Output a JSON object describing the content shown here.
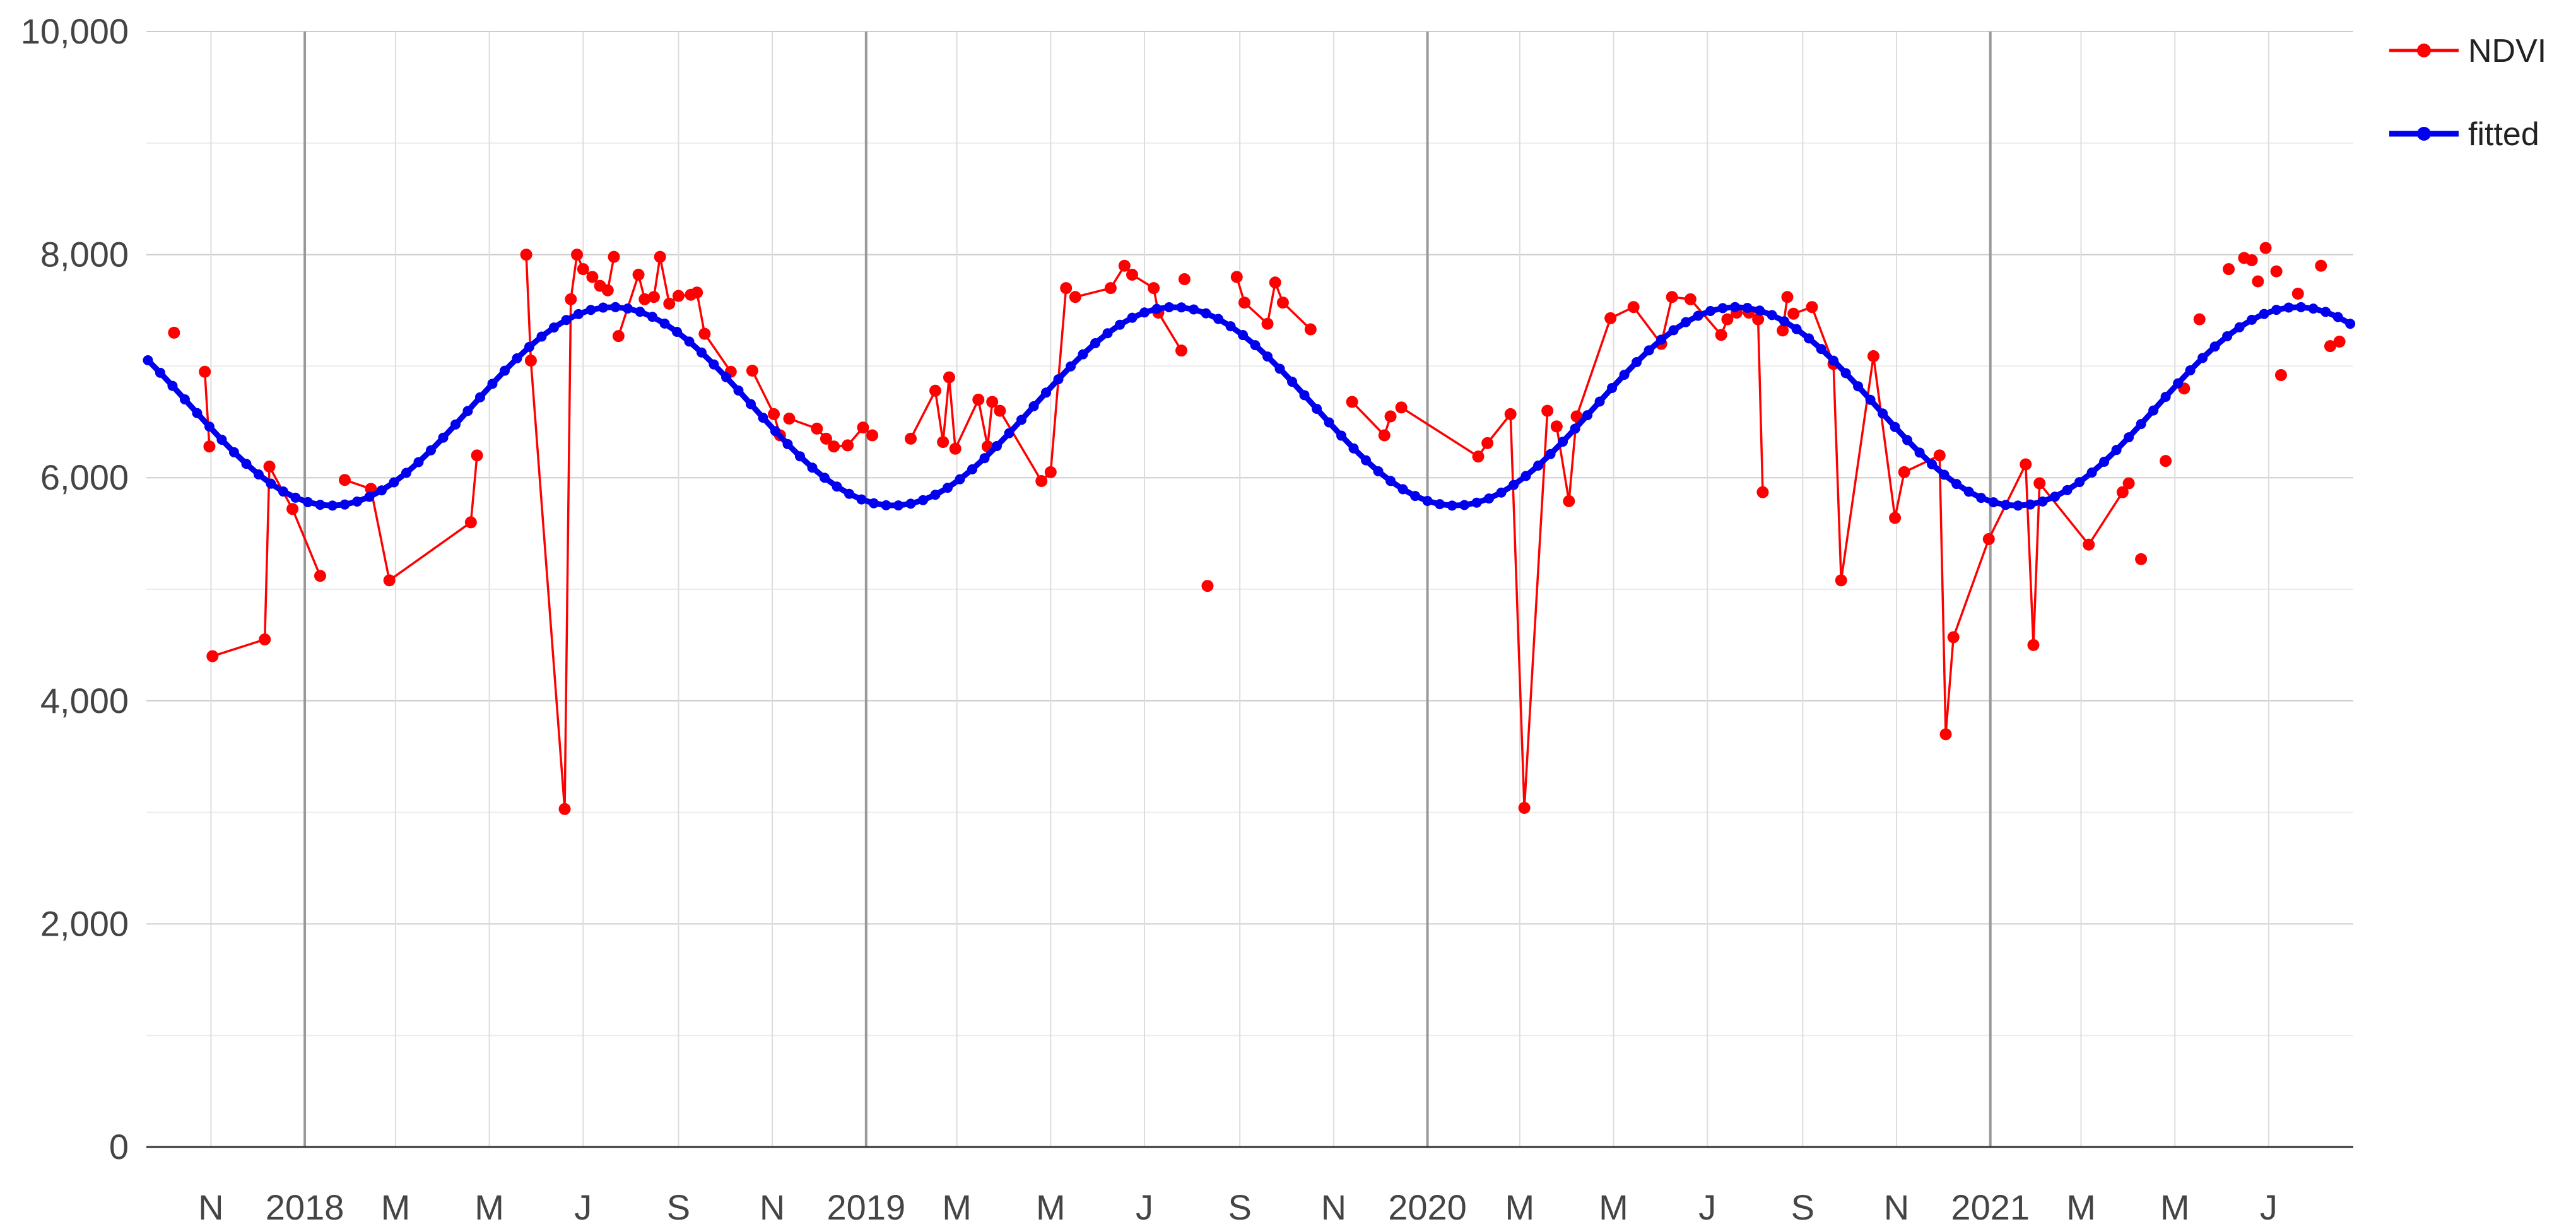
{
  "chart_data": {
    "type": "line",
    "title": "",
    "xlabel": "",
    "ylabel": "",
    "ylim": [
      0,
      10000
    ],
    "xlim": [
      "2017-09-20",
      "2021-08-25"
    ],
    "grid": true,
    "legend_position": "top-right",
    "y_ticks": [
      "0",
      "2,000",
      "4,000",
      "6,000",
      "8,000",
      "10,000"
    ],
    "y_tick_values": [
      0,
      2000,
      4000,
      6000,
      8000,
      10000
    ],
    "x_ticks": [
      {
        "label": "N",
        "date": "2017-11-01"
      },
      {
        "label": "2018",
        "date": "2018-01-01"
      },
      {
        "label": "M",
        "date": "2018-03-01"
      },
      {
        "label": "M",
        "date": "2018-05-01"
      },
      {
        "label": "J",
        "date": "2018-07-01"
      },
      {
        "label": "S",
        "date": "2018-09-01"
      },
      {
        "label": "N",
        "date": "2018-11-01"
      },
      {
        "label": "2019",
        "date": "2019-01-01"
      },
      {
        "label": "M",
        "date": "2019-03-01"
      },
      {
        "label": "M",
        "date": "2019-05-01"
      },
      {
        "label": "J",
        "date": "2019-07-01"
      },
      {
        "label": "S",
        "date": "2019-09-01"
      },
      {
        "label": "N",
        "date": "2019-11-01"
      },
      {
        "label": "2020",
        "date": "2020-01-01"
      },
      {
        "label": "M",
        "date": "2020-03-01"
      },
      {
        "label": "M",
        "date": "2020-05-01"
      },
      {
        "label": "J",
        "date": "2020-07-01"
      },
      {
        "label": "S",
        "date": "2020-09-01"
      },
      {
        "label": "N",
        "date": "2020-11-01"
      },
      {
        "label": "2021",
        "date": "2021-01-01"
      },
      {
        "label": "M",
        "date": "2021-03-01"
      },
      {
        "label": "M",
        "date": "2021-05-01"
      },
      {
        "label": "J",
        "date": "2021-07-01"
      }
    ],
    "series": [
      {
        "name": "NDVI",
        "color": "#ff0000",
        "points": [
          [
            "2017-10-08",
            7300
          ],
          [
            "2017-10-28",
            6950
          ],
          [
            "2017-10-31",
            6280
          ],
          [
            "2017-11-02",
            4400
          ],
          [
            "2017-12-06",
            4550
          ],
          [
            "2017-12-09",
            6100
          ],
          [
            "2017-12-24",
            5720
          ],
          [
            "2018-01-11",
            5120
          ],
          [
            "2018-01-27",
            5980
          ],
          [
            "2018-02-13",
            5900
          ],
          [
            "2018-02-25",
            5080
          ],
          [
            "2018-04-19",
            5600
          ],
          [
            "2018-04-23",
            6200
          ],
          [
            "2018-05-25",
            8000
          ],
          [
            "2018-05-28",
            7050
          ],
          [
            "2018-06-19",
            3030
          ],
          [
            "2018-06-23",
            7600
          ],
          [
            "2018-06-27",
            8000
          ],
          [
            "2018-07-01",
            7870
          ],
          [
            "2018-07-07",
            7800
          ],
          [
            "2018-07-12",
            7720
          ],
          [
            "2018-07-17",
            7680
          ],
          [
            "2018-07-21",
            7980
          ],
          [
            "2018-07-24",
            7270
          ],
          [
            "2018-08-06",
            7820
          ],
          [
            "2018-08-10",
            7600
          ],
          [
            "2018-08-16",
            7620
          ],
          [
            "2018-08-20",
            7980
          ],
          [
            "2018-08-26",
            7560
          ],
          [
            "2018-09-01",
            7630
          ],
          [
            "2018-09-09",
            7640
          ],
          [
            "2018-09-13",
            7660
          ],
          [
            "2018-09-18",
            7290
          ],
          [
            "2018-10-05",
            6950
          ],
          [
            "2018-10-19",
            6960
          ],
          [
            "2018-11-02",
            6570
          ],
          [
            "2018-11-06",
            6380
          ],
          [
            "2018-11-12",
            6530
          ],
          [
            "2018-11-30",
            6440
          ],
          [
            "2018-12-06",
            6350
          ],
          [
            "2018-12-11",
            6280
          ],
          [
            "2018-12-20",
            6290
          ],
          [
            "2018-12-30",
            6450
          ],
          [
            "2019-01-05",
            6380
          ],
          [
            "2019-01-30",
            6350
          ],
          [
            "2019-02-15",
            6780
          ],
          [
            "2019-02-20",
            6320
          ],
          [
            "2019-02-24",
            6900
          ],
          [
            "2019-02-28",
            6260
          ],
          [
            "2019-03-15",
            6700
          ],
          [
            "2019-03-21",
            6280
          ],
          [
            "2019-03-24",
            6680
          ],
          [
            "2019-03-29",
            6600
          ],
          [
            "2019-04-25",
            5970
          ],
          [
            "2019-05-01",
            6050
          ],
          [
            "2019-05-11",
            7700
          ],
          [
            "2019-05-17",
            7620
          ],
          [
            "2019-06-09",
            7700
          ],
          [
            "2019-06-18",
            7900
          ],
          [
            "2019-06-23",
            7820
          ],
          [
            "2019-07-07",
            7700
          ],
          [
            "2019-07-10",
            7480
          ],
          [
            "2019-07-25",
            7140
          ],
          [
            "2019-07-27",
            7780
          ],
          [
            "2019-08-11",
            5030
          ],
          [
            "2019-08-30",
            7800
          ],
          [
            "2019-09-04",
            7570
          ],
          [
            "2019-09-19",
            7380
          ],
          [
            "2019-09-24",
            7750
          ],
          [
            "2019-09-29",
            7570
          ],
          [
            "2019-10-17",
            7330
          ],
          [
            "2019-11-13",
            6680
          ],
          [
            "2019-12-04",
            6380
          ],
          [
            "2019-12-08",
            6550
          ],
          [
            "2019-12-15",
            6630
          ],
          [
            "2020-02-03",
            6190
          ],
          [
            "2020-02-09",
            6310
          ],
          [
            "2020-02-24",
            6570
          ],
          [
            "2020-03-04",
            3040
          ],
          [
            "2020-03-19",
            6600
          ],
          [
            "2020-03-25",
            6460
          ],
          [
            "2020-04-02",
            5790
          ],
          [
            "2020-04-07",
            6550
          ],
          [
            "2020-04-29",
            7430
          ],
          [
            "2020-05-14",
            7530
          ],
          [
            "2020-06-01",
            7200
          ],
          [
            "2020-06-08",
            7620
          ],
          [
            "2020-06-20",
            7600
          ],
          [
            "2020-07-10",
            7280
          ],
          [
            "2020-07-14",
            7420
          ],
          [
            "2020-07-20",
            7480
          ],
          [
            "2020-07-28",
            7480
          ],
          [
            "2020-08-03",
            7420
          ],
          [
            "2020-08-06",
            5870
          ],
          [
            "2020-08-19",
            7320
          ],
          [
            "2020-08-22",
            7620
          ],
          [
            "2020-08-26",
            7470
          ],
          [
            "2020-09-07",
            7530
          ],
          [
            "2020-09-21",
            7020
          ],
          [
            "2020-09-26",
            5080
          ],
          [
            "2020-10-17",
            7090
          ],
          [
            "2020-10-31",
            5640
          ],
          [
            "2020-11-06",
            6050
          ],
          [
            "2020-11-29",
            6200
          ],
          [
            "2020-12-03",
            3700
          ],
          [
            "2020-12-08",
            4570
          ],
          [
            "2020-12-31",
            5450
          ],
          [
            "2021-01-24",
            6120
          ],
          [
            "2021-01-29",
            4500
          ],
          [
            "2021-02-02",
            5950
          ],
          [
            "2021-03-06",
            5400
          ],
          [
            "2021-03-28",
            5870
          ],
          [
            "2021-04-01",
            5950
          ],
          [
            "2021-04-09",
            5270
          ],
          [
            "2021-04-25",
            6150
          ],
          [
            "2021-05-07",
            6800
          ],
          [
            "2021-05-17",
            7420
          ],
          [
            "2021-06-05",
            7870
          ],
          [
            "2021-06-15",
            7970
          ],
          [
            "2021-06-20",
            7950
          ],
          [
            "2021-06-24",
            7760
          ],
          [
            "2021-06-29",
            8060
          ],
          [
            "2021-07-06",
            7850
          ],
          [
            "2021-07-09",
            6920
          ],
          [
            "2021-07-20",
            7650
          ],
          [
            "2021-08-04",
            7900
          ],
          [
            "2021-08-10",
            7180
          ],
          [
            "2021-08-16",
            7220
          ]
        ],
        "segments": [
          [
            1,
            2
          ],
          [
            3,
            4
          ],
          [
            4,
            5
          ],
          [
            5,
            6
          ],
          [
            6,
            7
          ],
          [
            8,
            9
          ],
          [
            9,
            10
          ],
          [
            10,
            11
          ],
          [
            11,
            12
          ],
          [
            13,
            14
          ],
          [
            14,
            15
          ],
          [
            15,
            16
          ],
          [
            16,
            17
          ],
          [
            17,
            18
          ],
          [
            18,
            19
          ],
          [
            19,
            20
          ],
          [
            20,
            21
          ],
          [
            21,
            22
          ],
          [
            23,
            24
          ],
          [
            24,
            25
          ],
          [
            25,
            26
          ],
          [
            26,
            27
          ],
          [
            27,
            28
          ],
          [
            28,
            29
          ],
          [
            29,
            30
          ],
          [
            30,
            31
          ],
          [
            31,
            32
          ],
          [
            32,
            33
          ],
          [
            34,
            35
          ],
          [
            35,
            36
          ],
          [
            37,
            38
          ],
          [
            38,
            39
          ],
          [
            39,
            40
          ],
          [
            40,
            41
          ],
          [
            41,
            42
          ],
          [
            42,
            43
          ],
          [
            44,
            45
          ],
          [
            45,
            46
          ],
          [
            46,
            47
          ],
          [
            47,
            48
          ],
          [
            48,
            49
          ],
          [
            49,
            50
          ],
          [
            50,
            51
          ],
          [
            51,
            52
          ],
          [
            52,
            53
          ],
          [
            53,
            54
          ],
          [
            54,
            55
          ],
          [
            56,
            57
          ],
          [
            57,
            58
          ],
          [
            58,
            59
          ],
          [
            59,
            60
          ],
          [
            60,
            61
          ],
          [
            61,
            62
          ],
          [
            65,
            66
          ],
          [
            66,
            67
          ],
          [
            67,
            68
          ],
          [
            68,
            69
          ],
          [
            69,
            70
          ],
          [
            71,
            72
          ],
          [
            72,
            73
          ],
          [
            74,
            75
          ],
          [
            75,
            76
          ],
          [
            76,
            77
          ],
          [
            77,
            78
          ],
          [
            78,
            79
          ],
          [
            80,
            81
          ],
          [
            81,
            82
          ],
          [
            82,
            83
          ],
          [
            83,
            84
          ],
          [
            84,
            85
          ],
          [
            85,
            86
          ],
          [
            86,
            87
          ],
          [
            87,
            88
          ],
          [
            88,
            89
          ],
          [
            89,
            90
          ],
          [
            90,
            91
          ],
          [
            91,
            92
          ],
          [
            92,
            93
          ],
          [
            94,
            95
          ],
          [
            96,
            97
          ],
          [
            97,
            98
          ],
          [
            98,
            99
          ],
          [
            99,
            100
          ],
          [
            100,
            101
          ],
          [
            101,
            102
          ],
          [
            102,
            103
          ],
          [
            103,
            104
          ],
          [
            104,
            105
          ],
          [
            105,
            106
          ],
          [
            106,
            107
          ],
          [
            107,
            108
          ],
          [
            108,
            109
          ],
          [
            109,
            110
          ],
          [
            110,
            111
          ],
          [
            111,
            112
          ]
        ]
      },
      {
        "name": "fitted",
        "color": "#0000ee",
        "model": "harmonic",
        "mean": 6640,
        "amplitude": 890,
        "period_days": 365.25,
        "peak_date": "2018-07-20",
        "x_start": "2017-09-21",
        "x_end": "2021-08-24",
        "point_interval_days": 8
      }
    ]
  }
}
